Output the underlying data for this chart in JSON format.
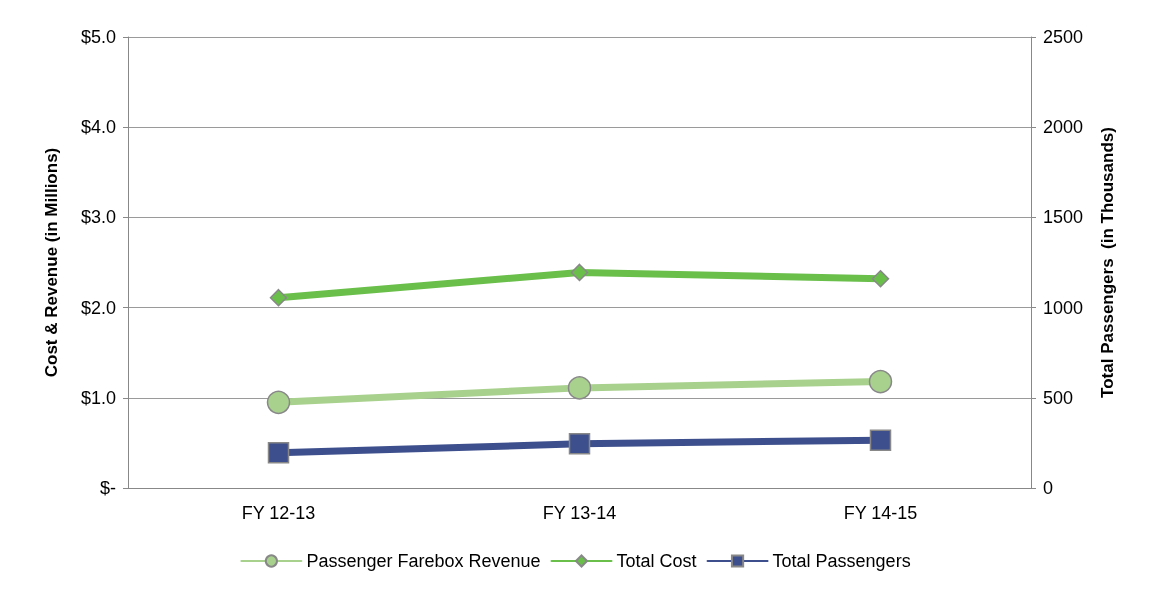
{
  "chart_data": {
    "type": "line",
    "ylabel": "Cost & Revenue (in Millions)",
    "y2label": "Total Passengers  (in Thousands)",
    "categories": [
      "FY 12-13",
      "FY 13-14",
      "FY 14-15"
    ],
    "series": [
      {
        "name": "Passenger Farebox Revenue",
        "color": "#a9d18e",
        "marker": "circle",
        "values": [
          0.95,
          1.11,
          1.18
        ]
      },
      {
        "name": "Total Cost",
        "color": "#6abf4b",
        "marker": "diamond",
        "values": [
          2.11,
          2.39,
          2.32
        ]
      },
      {
        "name": "Total Passengers",
        "color": "#3d4f8c",
        "marker": "square",
        "axis": "y2",
        "values": [
          195,
          245,
          265
        ]
      }
    ],
    "ylim": [
      0,
      5
    ],
    "yticks": [
      {
        "value": 0,
        "label": "$-"
      },
      {
        "value": 1,
        "label": "$1.0"
      },
      {
        "value": 2,
        "label": "$2.0"
      },
      {
        "value": 3,
        "label": "$3.0"
      },
      {
        "value": 4,
        "label": "$4.0"
      },
      {
        "value": 5,
        "label": "$5.0"
      }
    ],
    "y2lim": [
      0,
      2500
    ],
    "y2ticks": [
      0,
      500,
      1000,
      1500,
      2000,
      2500
    ],
    "grid": "y",
    "legend": "bottom",
    "line_style": "solid"
  }
}
